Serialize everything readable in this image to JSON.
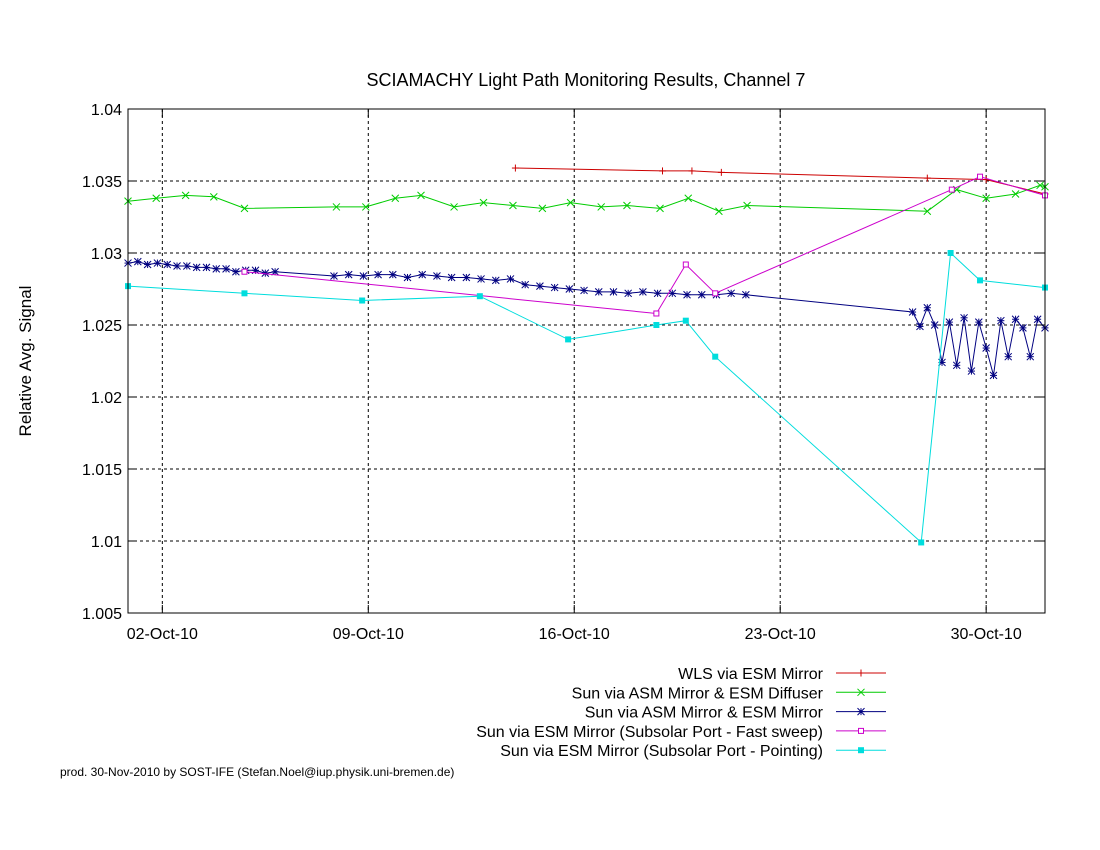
{
  "chart_data": {
    "type": "line",
    "title": "SCIAMACHY Light Path Monitoring Results, Channel 7",
    "xlabel": "",
    "ylabel": "Relative Avg. Signal",
    "x_unit": "date",
    "xlim": [
      "2010-09-30T20:00",
      "2010-11-01T00:00"
    ],
    "ylim": [
      1.005,
      1.04
    ],
    "yticks": [
      1.005,
      1.01,
      1.015,
      1.02,
      1.025,
      1.03,
      1.035,
      1.04
    ],
    "xticks": [
      {
        "x": "2010-10-02",
        "label": "02-Oct-10"
      },
      {
        "x": "2010-10-09",
        "label": "09-Oct-10"
      },
      {
        "x": "2010-10-16",
        "label": "16-Oct-10"
      },
      {
        "x": "2010-10-23",
        "label": "23-Oct-10"
      },
      {
        "x": "2010-10-30",
        "label": "30-Oct-10"
      }
    ],
    "grid": true,
    "legend_position": "bottom-right",
    "series": [
      {
        "name": "WLS via ESM Mirror",
        "color": "#cc0000",
        "marker": "plus",
        "x": [
          "2010-10-14T00:00",
          "2010-10-19T00:00",
          "2010-10-20T00:00",
          "2010-10-21T00:00",
          "2010-10-28T00:00",
          "2010-10-30T00:00",
          "2010-11-01T00:00"
        ],
        "y": [
          1.0359,
          1.0357,
          1.0357,
          1.0356,
          1.0352,
          1.0351,
          1.0341
        ]
      },
      {
        "name": "Sun via ASM Mirror & ESM Diffuser",
        "color": "#00cc00",
        "marker": "x",
        "x": [
          "2010-09-30T20:00",
          "2010-10-01T19:00",
          "2010-10-02T19:00",
          "2010-10-03T18:00",
          "2010-10-04T19:00",
          "2010-10-07T22:00",
          "2010-10-08T22:00",
          "2010-10-09T22:00",
          "2010-10-10T19:00",
          "2010-10-11T22:00",
          "2010-10-12T22:00",
          "2010-10-13T22:00",
          "2010-10-14T22:00",
          "2010-10-15T21:00",
          "2010-10-16T22:00",
          "2010-10-17T19:00",
          "2010-10-18T22:00",
          "2010-10-19T21:00",
          "2010-10-20T22:00",
          "2010-10-21T21:00",
          "2010-10-28T00:00",
          "2010-10-29T00:00",
          "2010-10-30T00:00",
          "2010-10-31T00:00",
          "2010-10-31T20:00",
          "2010-11-01T00:00"
        ],
        "y": [
          1.0336,
          1.0338,
          1.034,
          1.0339,
          1.0331,
          1.0332,
          1.0332,
          1.0338,
          1.034,
          1.0332,
          1.0335,
          1.0333,
          1.0331,
          1.0335,
          1.0332,
          1.0333,
          1.0331,
          1.0338,
          1.0329,
          1.0333,
          1.0329,
          1.0344,
          1.0338,
          1.0341,
          1.0347,
          1.0346
        ]
      },
      {
        "name": "Sun via ASM Mirror & ESM Mirror",
        "color": "#000080",
        "marker": "star",
        "x": [
          "2010-09-30T20:00",
          "2010-10-01T04:00",
          "2010-10-01T12:00",
          "2010-10-01T20:00",
          "2010-10-02T04:00",
          "2010-10-02T12:00",
          "2010-10-02T20:00",
          "2010-10-03T04:00",
          "2010-10-03T12:00",
          "2010-10-03T20:00",
          "2010-10-04T04:00",
          "2010-10-04T12:00",
          "2010-10-04T20:00",
          "2010-10-05T04:00",
          "2010-10-05T12:00",
          "2010-10-05T20:00",
          "2010-10-07T20:00",
          "2010-10-08T08:00",
          "2010-10-08T20:00",
          "2010-10-09T08:00",
          "2010-10-09T20:00",
          "2010-10-10T08:00",
          "2010-10-10T20:00",
          "2010-10-11T08:00",
          "2010-10-11T20:00",
          "2010-10-12T08:00",
          "2010-10-12T20:00",
          "2010-10-13T08:00",
          "2010-10-13T20:00",
          "2010-10-14T08:00",
          "2010-10-14T20:00",
          "2010-10-15T08:00",
          "2010-10-15T20:00",
          "2010-10-16T08:00",
          "2010-10-16T20:00",
          "2010-10-17T08:00",
          "2010-10-17T20:00",
          "2010-10-18T08:00",
          "2010-10-18T20:00",
          "2010-10-19T08:00",
          "2010-10-19T20:00",
          "2010-10-20T08:00",
          "2010-10-20T20:00",
          "2010-10-21T08:00",
          "2010-10-21T20:00",
          "2010-10-27T12:00",
          "2010-10-27T18:00",
          "2010-10-28T00:00",
          "2010-10-28T06:00",
          "2010-10-28T12:00",
          "2010-10-28T18:00",
          "2010-10-29T00:00",
          "2010-10-29T06:00",
          "2010-10-29T12:00",
          "2010-10-29T18:00",
          "2010-10-30T00:00",
          "2010-10-30T06:00",
          "2010-10-30T12:00",
          "2010-10-30T18:00",
          "2010-10-31T00:00",
          "2010-10-31T06:00",
          "2010-10-31T12:00",
          "2010-10-31T18:00",
          "2010-11-01T00:00"
        ],
        "y": [
          1.0293,
          1.0294,
          1.0292,
          1.0293,
          1.0292,
          1.0291,
          1.0291,
          1.029,
          1.029,
          1.0289,
          1.0289,
          1.0287,
          1.0288,
          1.0288,
          1.0286,
          1.0287,
          1.0284,
          1.0285,
          1.0284,
          1.0285,
          1.0285,
          1.0283,
          1.0285,
          1.0284,
          1.0283,
          1.0283,
          1.0282,
          1.0281,
          1.0282,
          1.0278,
          1.0277,
          1.0276,
          1.0275,
          1.0274,
          1.0273,
          1.0273,
          1.0272,
          1.0273,
          1.0272,
          1.0272,
          1.0271,
          1.0271,
          1.0271,
          1.0272,
          1.0271,
          1.0259,
          1.0249,
          1.0262,
          1.025,
          1.0224,
          1.0252,
          1.0222,
          1.0255,
          1.0218,
          1.0252,
          1.0234,
          1.0215,
          1.0253,
          1.0228,
          1.0254,
          1.0248,
          1.0228,
          1.0254,
          1.0248
        ]
      },
      {
        "name": "Sun via ESM Mirror (Subsolar Port - Fast sweep)",
        "color": "#cc00cc",
        "marker": "open-square",
        "x": [
          "2010-10-04T19:00",
          "2010-10-18T19:00",
          "2010-10-19T19:00",
          "2010-10-20T19:00",
          "2010-10-28T20:00",
          "2010-10-29T19:00",
          "2010-11-01T00:00"
        ],
        "y": [
          1.0287,
          1.0258,
          1.0292,
          1.0272,
          1.0344,
          1.0353,
          1.034
        ]
      },
      {
        "name": "Sun via ESM Mirror (Subsolar Port - Pointing)",
        "color": "#00dddd",
        "marker": "filled-square",
        "x": [
          "2010-09-30T20:00",
          "2010-10-04T19:00",
          "2010-10-08T19:00",
          "2010-10-12T19:00",
          "2010-10-15T19:00",
          "2010-10-18T19:00",
          "2010-10-19T19:00",
          "2010-10-20T19:00",
          "2010-10-27T19:00",
          "2010-10-28T19:00",
          "2010-10-29T19:00",
          "2010-11-01T00:00"
        ],
        "y": [
          1.0277,
          1.0272,
          1.0267,
          1.027,
          1.024,
          1.025,
          1.0253,
          1.0228,
          1.0099,
          1.03,
          1.0281,
          1.0276
        ]
      }
    ]
  },
  "footer": {
    "credit": "prod. 30-Nov-2010 by SOST-IFE (Stefan.Noel@iup.physik.uni-bremen.de)"
  }
}
